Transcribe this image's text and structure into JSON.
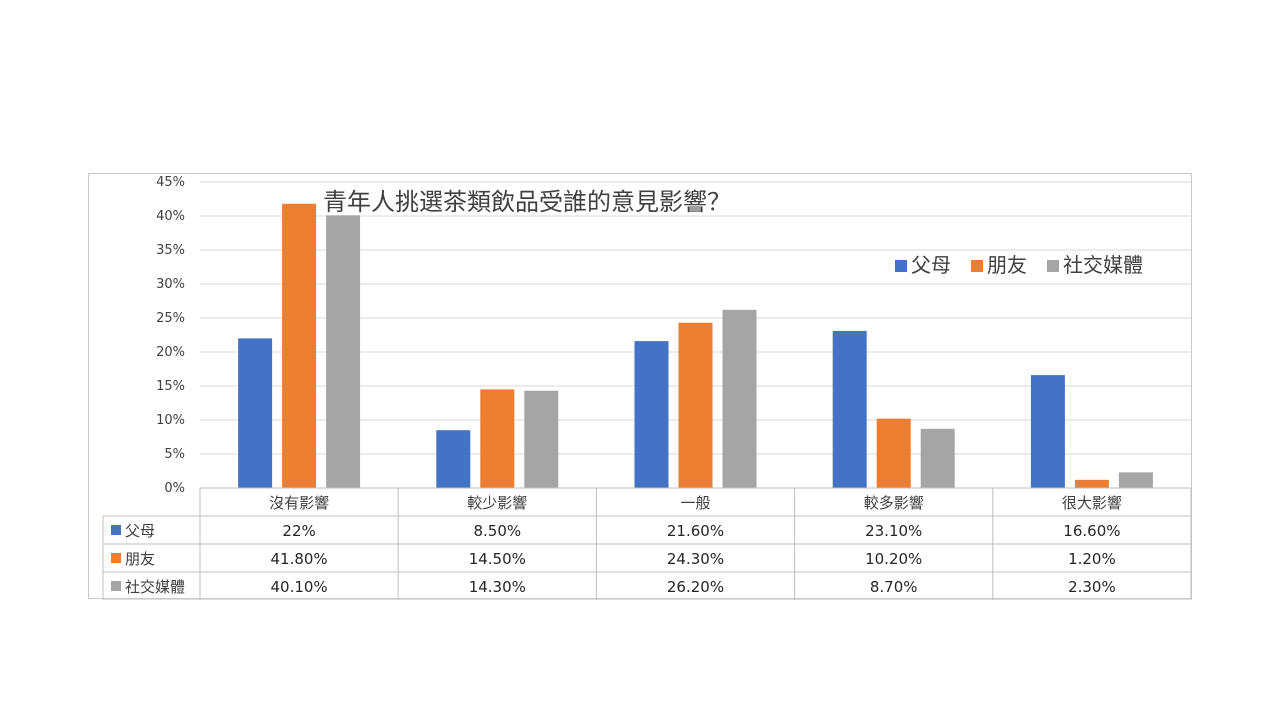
{
  "chart_data": {
    "type": "bar",
    "title": "青年人挑選茶類飲品受誰的意見影響？",
    "categories": [
      "沒有影響",
      "較少影響",
      "一般",
      "較多影響",
      "很大影響"
    ],
    "series": [
      {
        "name": "父母",
        "color": "#4472C4",
        "values": [
          22,
          8.5,
          21.6,
          23.1,
          16.6
        ],
        "labels": [
          "22%",
          "8.50%",
          "21.60%",
          "23.10%",
          "16.60%"
        ]
      },
      {
        "name": "朋友",
        "color": "#ED7D31",
        "values": [
          41.8,
          14.5,
          24.3,
          10.2,
          1.2
        ],
        "labels": [
          "41.80%",
          "14.50%",
          "24.30%",
          "10.20%",
          "1.20%"
        ]
      },
      {
        "name": "社交媒體",
        "color": "#A5A5A5",
        "values": [
          40.1,
          14.3,
          26.2,
          8.7,
          2.3
        ],
        "labels": [
          "40.10%",
          "14.30%",
          "26.20%",
          "8.70%",
          "2.30%"
        ]
      }
    ],
    "ylim": [
      0,
      45
    ],
    "yticks": [
      "0%",
      "5%",
      "10%",
      "15%",
      "20%",
      "25%",
      "30%",
      "35%",
      "40%",
      "45%"
    ],
    "grid": true,
    "legend": "top-right",
    "data_table": true
  }
}
